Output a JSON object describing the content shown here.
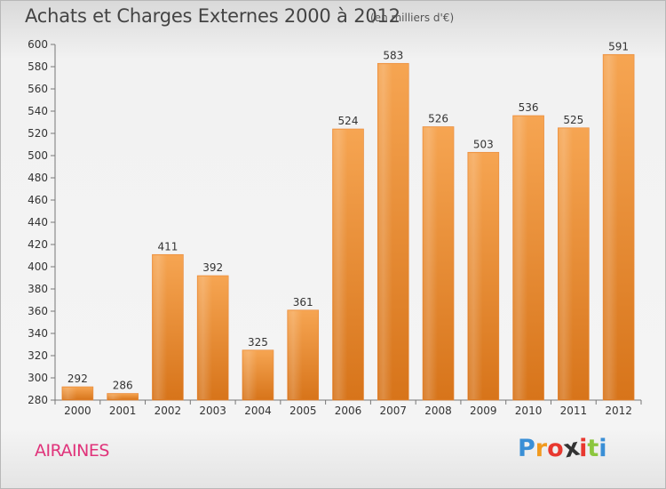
{
  "title": "Achats et Charges Externes 2000 à 2012",
  "subtitle": "(en milliers d'€)",
  "place": "AIRAINES",
  "logo": {
    "text": "Proxiti",
    "letters": [
      "P",
      "r",
      "o",
      "x",
      "i",
      "t",
      "i"
    ],
    "colors": [
      "#3a8fd6",
      "#f19a1f",
      "#e8382f",
      "#333333",
      "#e8382f",
      "#8cc63e",
      "#3a8fd6"
    ]
  },
  "colors": {
    "bar_top": "#f6a552",
    "bar_bottom": "#d7741a",
    "axis": "#777777",
    "text": "#333333"
  },
  "chart_data": {
    "type": "bar",
    "categories": [
      "2000",
      "2001",
      "2002",
      "2003",
      "2004",
      "2005",
      "2006",
      "2007",
      "2008",
      "2009",
      "2010",
      "2011",
      "2012"
    ],
    "values": [
      292,
      286,
      411,
      392,
      325,
      361,
      524,
      583,
      526,
      503,
      536,
      525,
      591
    ],
    "data_labels": [
      "292",
      "286",
      "411",
      "392",
      "325",
      "361",
      "524",
      "583",
      "526",
      "503",
      "536",
      "525",
      "591"
    ],
    "ylim": [
      280,
      600
    ],
    "yticks": [
      280,
      300,
      320,
      340,
      360,
      380,
      400,
      420,
      440,
      460,
      480,
      500,
      520,
      540,
      560,
      580,
      600
    ],
    "grid": false,
    "legend": "none",
    "xlabel": "",
    "ylabel": ""
  }
}
